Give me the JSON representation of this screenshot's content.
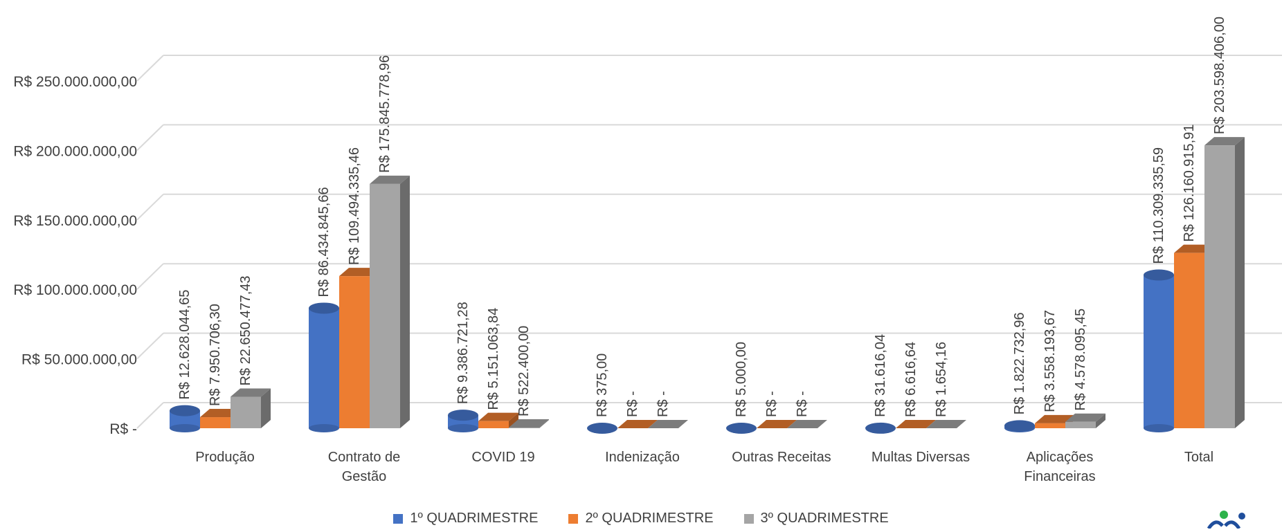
{
  "chart_data": {
    "type": "bar",
    "title": "",
    "xlabel": "",
    "ylabel": "",
    "ylim": [
      0,
      250000000
    ],
    "y_ticks": [
      {
        "value": 0,
        "label": "R$ -"
      },
      {
        "value": 50000000,
        "label": "R$ 50.000.000,00"
      },
      {
        "value": 100000000,
        "label": "R$ 100.000.000,00"
      },
      {
        "value": 150000000,
        "label": "R$ 150.000.000,00"
      },
      {
        "value": 200000000,
        "label": "R$ 200.000.000,00"
      },
      {
        "value": 250000000,
        "label": "R$ 250.000.000,00"
      }
    ],
    "grid": true,
    "legend_position": "bottom",
    "categories": [
      [
        "Produção"
      ],
      [
        "Contrato de",
        "Gestão"
      ],
      [
        "COVID 19"
      ],
      [
        "Indenização"
      ],
      [
        "Outras Receitas"
      ],
      [
        "Multas Diversas"
      ],
      [
        "Aplicações",
        "Financeiras"
      ],
      [
        "Total"
      ]
    ],
    "series": [
      {
        "name": "1º QUADRIMESTRE",
        "color": "#4472C4",
        "values": [
          12628044.65,
          86434845.66,
          9386721.28,
          375,
          5000,
          31616.04,
          1822732.96,
          110309335.59
        ],
        "labels": [
          "R$ 12.628.044,65",
          "R$ 86.434.845,66",
          "R$ 9.386.721,28",
          "R$ 375,00",
          "R$ 5.000,00",
          "R$ 31.616,04",
          "R$ 1.822.732,96",
          "R$ 110.309.335,59"
        ]
      },
      {
        "name": "2º QUADRIMESTRE",
        "color": "#ED7D31",
        "values": [
          7950706.3,
          109494335.46,
          5151063.84,
          0,
          0,
          6616.64,
          3558193.67,
          126160915.91
        ],
        "labels": [
          "R$ 7.950.706,30",
          "R$ 109.494.335,46",
          "R$ 5.151.063,84",
          "R$ -",
          "R$ -",
          "R$ 6.616,64",
          "R$ 3.558.193,67",
          "R$ 126.160.915,91"
        ]
      },
      {
        "name": "3º QUADRIMESTRE",
        "color": "#A5A5A5",
        "values": [
          22650477.43,
          175845778.96,
          522400.0,
          0,
          0,
          1654.16,
          4578095.45,
          203598406.0
        ],
        "labels": [
          "R$ 22.650.477,43",
          "R$ 175.845.778,96",
          "R$ 522.400,00",
          "R$ -",
          "R$ -",
          "R$ 1.654,16",
          "R$ 4.578.095,45",
          "R$ 203.598.406,00"
        ]
      }
    ]
  },
  "logo": {
    "icon": "organization-logo-icon"
  }
}
